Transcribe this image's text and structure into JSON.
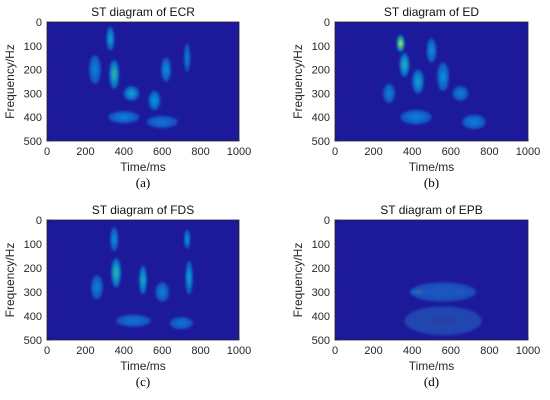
{
  "colors": {
    "background": "#1c1a9a",
    "axis": "#262626"
  },
  "chart_data": [
    {
      "type": "heatmap",
      "title": "ST diagram of ECR",
      "caption": "(a)",
      "xlabel": "Time/ms",
      "ylabel": "Frequency/Hz",
      "xlim": [
        0,
        1000
      ],
      "ylim": [
        0,
        500
      ],
      "y_reversed": true,
      "xticks": [
        "0",
        "200",
        "400",
        "600",
        "800",
        "1000"
      ],
      "yticks": [
        "0",
        "100",
        "200",
        "300",
        "400",
        "500"
      ],
      "colormap": "parula",
      "hotspots": [
        {
          "t": 350,
          "f": 220,
          "dt": 25,
          "df": 60,
          "v": 0.6
        },
        {
          "t": 330,
          "f": 70,
          "dt": 20,
          "df": 50,
          "v": 0.45
        },
        {
          "t": 440,
          "f": 300,
          "dt": 40,
          "df": 30,
          "v": 0.45
        },
        {
          "t": 560,
          "f": 330,
          "dt": 30,
          "df": 40,
          "v": 0.4
        },
        {
          "t": 620,
          "f": 200,
          "dt": 25,
          "df": 50,
          "v": 0.35
        },
        {
          "t": 250,
          "f": 200,
          "dt": 30,
          "df": 60,
          "v": 0.3
        },
        {
          "t": 730,
          "f": 150,
          "dt": 15,
          "df": 60,
          "v": 0.3
        },
        {
          "t": 400,
          "f": 400,
          "dt": 80,
          "df": 25,
          "v": 0.3
        },
        {
          "t": 600,
          "f": 420,
          "dt": 80,
          "df": 25,
          "v": 0.25
        }
      ]
    },
    {
      "type": "heatmap",
      "title": "ST diagram of ED",
      "caption": "(b)",
      "xlabel": "Time/ms",
      "ylabel": "Frequency/Hz",
      "xlim": [
        0,
        1000
      ],
      "ylim": [
        0,
        500
      ],
      "y_reversed": true,
      "xticks": [
        "0",
        "200",
        "400",
        "600",
        "800",
        "1000"
      ],
      "yticks": [
        "0",
        "100",
        "200",
        "300",
        "400",
        "500"
      ],
      "colormap": "parula",
      "hotspots": [
        {
          "t": 340,
          "f": 90,
          "dt": 20,
          "df": 35,
          "v": 0.95
        },
        {
          "t": 360,
          "f": 180,
          "dt": 25,
          "df": 50,
          "v": 0.55
        },
        {
          "t": 430,
          "f": 250,
          "dt": 30,
          "df": 50,
          "v": 0.45
        },
        {
          "t": 500,
          "f": 120,
          "dt": 25,
          "df": 50,
          "v": 0.35
        },
        {
          "t": 560,
          "f": 230,
          "dt": 30,
          "df": 60,
          "v": 0.35
        },
        {
          "t": 650,
          "f": 300,
          "dt": 40,
          "df": 30,
          "v": 0.3
        },
        {
          "t": 280,
          "f": 300,
          "dt": 30,
          "df": 40,
          "v": 0.3
        },
        {
          "t": 720,
          "f": 420,
          "dt": 60,
          "df": 30,
          "v": 0.3
        },
        {
          "t": 420,
          "f": 400,
          "dt": 80,
          "df": 30,
          "v": 0.3
        }
      ]
    },
    {
      "type": "heatmap",
      "title": "ST diagram of FDS",
      "caption": "(c)",
      "xlabel": "Time/ms",
      "ylabel": "Frequency/Hz",
      "xlim": [
        0,
        1000
      ],
      "ylim": [
        0,
        500
      ],
      "y_reversed": true,
      "xticks": [
        "0",
        "200",
        "400",
        "600",
        "800",
        "1000"
      ],
      "yticks": [
        "0",
        "100",
        "200",
        "300",
        "400",
        "500"
      ],
      "colormap": "parula",
      "hotspots": [
        {
          "t": 360,
          "f": 220,
          "dt": 25,
          "df": 60,
          "v": 0.6
        },
        {
          "t": 500,
          "f": 250,
          "dt": 20,
          "df": 60,
          "v": 0.5
        },
        {
          "t": 740,
          "f": 240,
          "dt": 18,
          "df": 70,
          "v": 0.45
        },
        {
          "t": 730,
          "f": 80,
          "dt": 15,
          "df": 40,
          "v": 0.4
        },
        {
          "t": 350,
          "f": 80,
          "dt": 20,
          "df": 50,
          "v": 0.35
        },
        {
          "t": 260,
          "f": 280,
          "dt": 30,
          "df": 50,
          "v": 0.3
        },
        {
          "t": 600,
          "f": 300,
          "dt": 35,
          "df": 40,
          "v": 0.3
        },
        {
          "t": 450,
          "f": 420,
          "dt": 90,
          "df": 25,
          "v": 0.25
        },
        {
          "t": 700,
          "f": 430,
          "dt": 60,
          "df": 25,
          "v": 0.25
        }
      ]
    },
    {
      "type": "heatmap",
      "title": "ST diagram of EPB",
      "caption": "(d)",
      "xlabel": "Time/ms",
      "ylabel": "Frequency/Hz",
      "xlim": [
        0,
        1000
      ],
      "ylim": [
        0,
        500
      ],
      "y_reversed": true,
      "xticks": [
        "0",
        "200",
        "400",
        "600",
        "800",
        "1000"
      ],
      "yticks": [
        "0",
        "100",
        "200",
        "300",
        "400",
        "500"
      ],
      "colormap": "parula",
      "hotspots": [
        {
          "t": 440,
          "f": 300,
          "dt": 45,
          "df": 11,
          "v": 1.0
        },
        {
          "t": 640,
          "f": 300,
          "dt": 50,
          "df": 11,
          "v": 0.7
        },
        {
          "t": 530,
          "f": 300,
          "dt": 50,
          "df": 10,
          "v": 0.55
        },
        {
          "t": 560,
          "f": 300,
          "dt": 170,
          "df": 40,
          "v": 0.15
        },
        {
          "t": 560,
          "f": 420,
          "dt": 200,
          "df": 60,
          "v": 0.08
        }
      ]
    }
  ]
}
